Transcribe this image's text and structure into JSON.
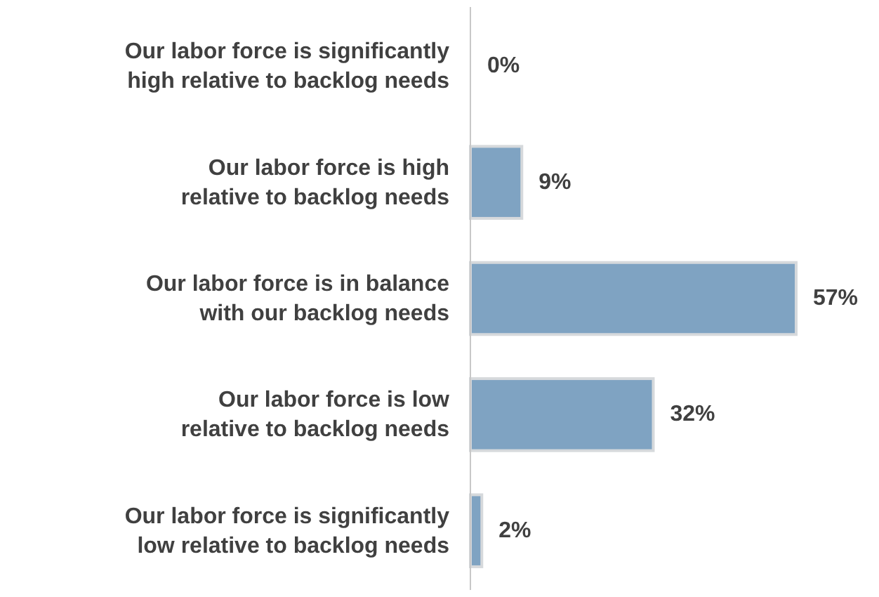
{
  "chart_data": {
    "type": "bar",
    "orientation": "horizontal",
    "categories": [
      "Our labor force is significantly\nhigh relative to backlog needs",
      "Our labor force is high\nrelative to backlog needs",
      "Our labor force is in balance\nwith our backlog needs",
      "Our labor force is low\nrelative to backlog needs",
      "Our labor force is significantly\nlow relative to backlog needs"
    ],
    "values": [
      0,
      9,
      57,
      32,
      2
    ],
    "value_labels": [
      "0%",
      "9%",
      "57%",
      "32%",
      "2%"
    ],
    "color": "#7fa3c2",
    "tick_labels": "y"
  }
}
